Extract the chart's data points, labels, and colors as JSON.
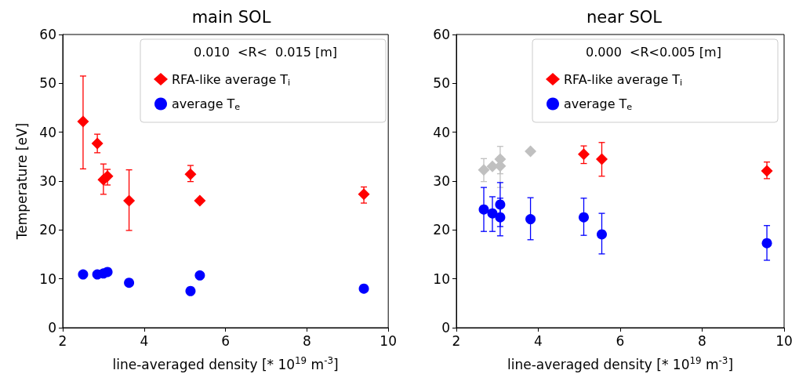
{
  "chart_data": [
    {
      "type": "scatter",
      "title": "main SOL",
      "xlabel": "line-averaged density [* 10$^{19}$ m$^{-3}$]",
      "ylabel": "Temperature [eV]",
      "legend_title": "0.010  <R<  0.015 [m]",
      "xlim": [
        2,
        10
      ],
      "xticks": [
        2,
        4,
        6,
        8,
        10
      ],
      "ylim": [
        0,
        60
      ],
      "yticks": [
        0,
        10,
        20,
        30,
        40,
        50,
        60
      ],
      "grid": false,
      "legend": "top right",
      "series": [
        {
          "name": "RFA-like average T$_{i}$",
          "color": "#ff0000",
          "marker": "diamond",
          "x": [
            2.5,
            2.85,
            3.0,
            3.1,
            3.63,
            5.14,
            5.37,
            9.4
          ],
          "values": [
            42.2,
            37.7,
            30.3,
            31,
            26,
            31.4,
            26,
            27.3
          ],
          "errors": [
            [
              32.5,
              51.5
            ],
            [
              35.8,
              39.6
            ],
            [
              27.3,
              33.5
            ],
            [
              29.2,
              32.4
            ],
            [
              19.9,
              32.3
            ],
            [
              29.9,
              33.2
            ],
            null,
            [
              25.5,
              28.8
            ]
          ]
        },
        {
          "name": "average T$_{e}$",
          "color": "#0000ff",
          "marker": "circle",
          "x": [
            2.5,
            2.85,
            3.0,
            3.1,
            3.63,
            5.14,
            5.37,
            9.4
          ],
          "values": [
            10.9,
            10.9,
            11.1,
            11.4,
            9.2,
            7.5,
            10.7,
            8.0
          ]
        }
      ]
    },
    {
      "type": "scatter",
      "title": "near SOL",
      "xlabel": "line-averaged density [* 10$^{19}$ m$^{-3}$]",
      "legend_title": "0.000  <R<0.005 [m]",
      "xlim": [
        2,
        10
      ],
      "xticks": [
        2,
        4,
        6,
        8,
        10
      ],
      "ylim": [
        0,
        60
      ],
      "yticks": [
        0,
        10,
        20,
        30,
        40,
        50,
        60
      ],
      "grid": false,
      "legend": "top right",
      "series": [
        {
          "color": "#c0c0c0",
          "marker": "diamond",
          "x": [
            2.67,
            2.88,
            3.07,
            3.07,
            3.81
          ],
          "values": [
            32.3,
            33,
            34.5,
            33.1,
            36.1
          ],
          "errors": [
            [
              29.9,
              34.6
            ],
            null,
            [
              31.5,
              37.1
            ],
            [
              28.7,
              35
            ],
            null
          ]
        },
        {
          "name": "RFA-like average T$_{i}$",
          "color": "#ff0000",
          "marker": "diamond",
          "x": [
            5.11,
            5.55,
            9.58
          ],
          "values": [
            35.5,
            34.5,
            32.1
          ],
          "errors": [
            [
              33.6,
              37.2
            ],
            [
              31,
              37.9
            ],
            [
              30.5,
              33.9
            ]
          ]
        },
        {
          "name": "average T$_{e}$",
          "color": "#0000ff",
          "marker": "circle",
          "x": [
            2.67,
            2.88,
            3.07,
            3.07,
            3.81,
            5.11,
            5.55,
            9.58
          ],
          "values": [
            24.2,
            23.4,
            25.2,
            22.6,
            22.2,
            22.6,
            19.1,
            17.3
          ],
          "errors": [
            [
              19.7,
              28.7
            ],
            [
              19.7,
              26.8
            ],
            [
              20.7,
              29.7
            ],
            [
              18.8,
              26.5
            ],
            [
              18.0,
              26.6
            ],
            [
              18.9,
              26.5
            ],
            [
              15.1,
              23.4
            ],
            [
              13.8,
              20.9
            ]
          ]
        }
      ]
    }
  ]
}
